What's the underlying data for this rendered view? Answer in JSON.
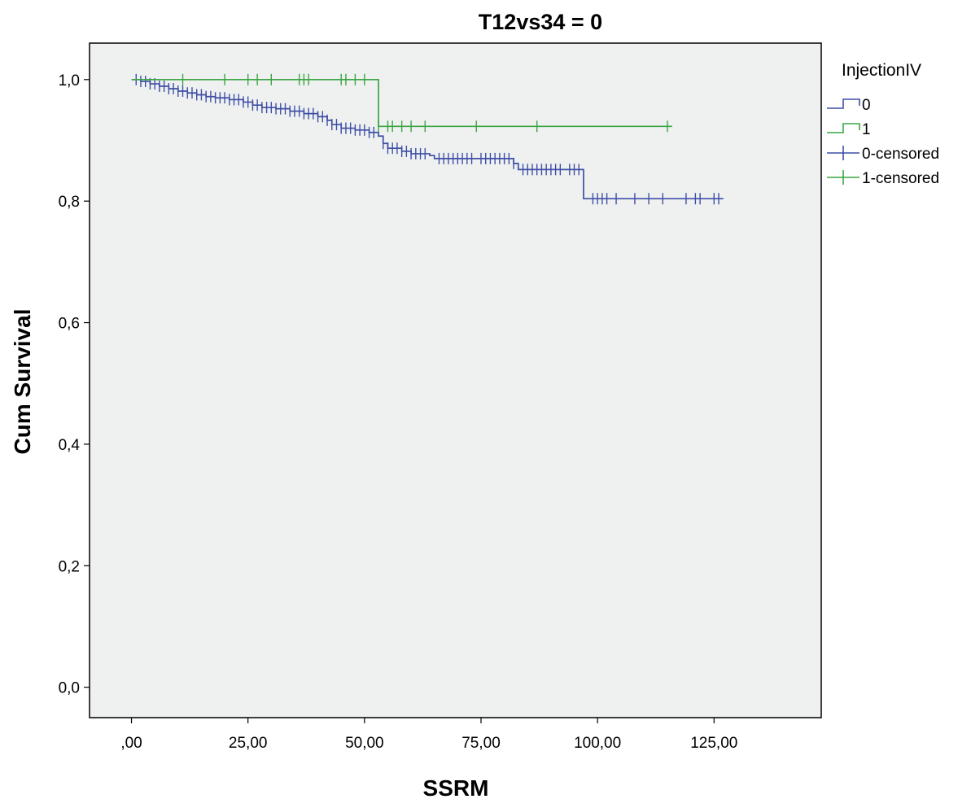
{
  "chart_data": {
    "type": "line",
    "subtype": "kaplan-meier survival curve",
    "title": "T12vs34 = 0",
    "xlabel": "SSRM",
    "ylabel": "Cum Survival",
    "xlim": [
      -9,
      148
    ],
    "ylim": [
      -0.05,
      1.06
    ],
    "xticks": [
      0,
      25,
      50,
      75,
      100,
      125
    ],
    "xtick_labels": [
      ",00",
      "25,00",
      "50,00",
      "75,00",
      "100,00",
      "125,00"
    ],
    "yticks": [
      0,
      0.2,
      0.4,
      0.6,
      0.8,
      1.0
    ],
    "ytick_labels": [
      "0,0",
      "0,2",
      "0,4",
      "0,6",
      "0,8",
      "1,0"
    ],
    "grid": false,
    "plot_background": "#eff1f0",
    "legend": {
      "title": "InjectionIV",
      "position": "right-top",
      "entries": [
        {
          "label": "0",
          "kind": "step",
          "color": "#3f4fa6"
        },
        {
          "label": "1",
          "kind": "step",
          "color": "#3aa542"
        },
        {
          "label": "0-censored",
          "kind": "censor",
          "color": "#3f4fa6"
        },
        {
          "label": "1-censored",
          "kind": "censor",
          "color": "#3aa542"
        }
      ]
    },
    "series": [
      {
        "name": "0",
        "color": "#3f4fa6",
        "end_x": 127,
        "steps": [
          [
            0,
            1.0
          ],
          [
            2,
            0.997
          ],
          [
            4,
            0.993
          ],
          [
            6,
            0.989
          ],
          [
            8,
            0.985
          ],
          [
            10,
            0.981
          ],
          [
            12,
            0.978
          ],
          [
            14,
            0.975
          ],
          [
            16,
            0.972
          ],
          [
            18,
            0.97
          ],
          [
            21,
            0.967
          ],
          [
            24,
            0.963
          ],
          [
            26,
            0.958
          ],
          [
            28,
            0.954
          ],
          [
            31,
            0.952
          ],
          [
            34,
            0.948
          ],
          [
            37,
            0.944
          ],
          [
            40,
            0.939
          ],
          [
            42,
            0.933
          ],
          [
            43,
            0.926
          ],
          [
            45,
            0.92
          ],
          [
            48,
            0.917
          ],
          [
            51,
            0.913
          ],
          [
            53,
            0.907
          ],
          [
            54,
            0.895
          ],
          [
            55,
            0.887
          ],
          [
            58,
            0.882
          ],
          [
            60,
            0.878
          ],
          [
            64,
            0.875
          ],
          [
            65,
            0.87
          ],
          [
            82,
            0.862
          ],
          [
            83,
            0.852
          ],
          [
            97,
            0.804
          ]
        ],
        "censored_x": [
          1,
          2,
          3,
          4,
          5,
          6,
          7,
          8,
          9,
          10,
          11,
          12,
          13,
          14,
          15,
          16,
          17,
          18,
          19,
          20,
          21,
          22,
          23,
          24,
          25,
          26,
          27,
          28,
          29,
          30,
          31,
          32,
          33,
          34,
          35,
          36,
          37,
          38,
          39,
          40,
          41,
          42,
          43,
          44,
          45,
          46,
          47,
          48,
          49,
          50,
          51,
          52,
          54,
          55,
          56,
          57,
          58,
          59,
          60,
          61,
          62,
          63,
          66,
          67,
          68,
          69,
          70,
          71,
          72,
          73,
          75,
          76,
          77,
          78,
          79,
          80,
          81,
          82,
          84,
          85,
          86,
          87,
          88,
          89,
          90,
          91,
          92,
          94,
          95,
          96,
          99,
          100,
          101,
          102,
          104,
          108,
          111,
          114,
          119,
          121,
          122,
          125,
          126
        ]
      },
      {
        "name": "1",
        "color": "#3aa542",
        "end_x": 116,
        "steps": [
          [
            0,
            1.0
          ],
          [
            53,
            0.923
          ]
        ],
        "censored_x": [
          11,
          20,
          25,
          27,
          30,
          36,
          37,
          38,
          45,
          46,
          48,
          50,
          53,
          55,
          56,
          58,
          60,
          63,
          74,
          87,
          115
        ]
      }
    ]
  }
}
